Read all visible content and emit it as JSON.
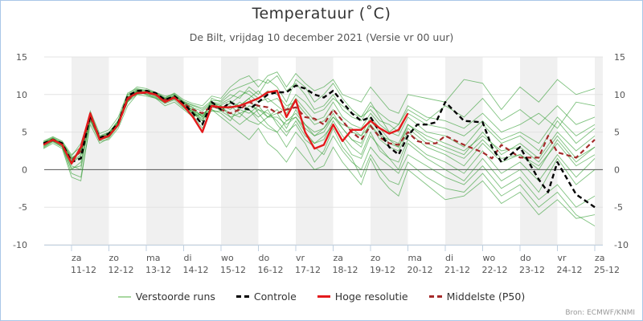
{
  "chart_data": {
    "type": "line",
    "title": "Temperatuur (˚C)",
    "subtitle": "De Bilt, vrijdag 10 december 2021 (Versie vr 00 uur)",
    "ylim": [
      -10,
      15
    ],
    "yticks": [
      15,
      10,
      5,
      0,
      -5,
      -10
    ],
    "x_range_days": [
      -0.75,
      14.2
    ],
    "xticks": [
      {
        "day": 0,
        "dow": "za",
        "date": "11-12"
      },
      {
        "day": 1,
        "dow": "zo",
        "date": "12-12"
      },
      {
        "day": 2,
        "dow": "ma",
        "date": "13-12"
      },
      {
        "day": 3,
        "dow": "di",
        "date": "14-12"
      },
      {
        "day": 4,
        "dow": "wo",
        "date": "15-12"
      },
      {
        "day": 5,
        "dow": "do",
        "date": "16-12"
      },
      {
        "day": 6,
        "dow": "vr",
        "date": "17-12"
      },
      {
        "day": 7,
        "dow": "za",
        "date": "18-12"
      },
      {
        "day": 8,
        "dow": "zo",
        "date": "19-12"
      },
      {
        "day": 9,
        "dow": "ma",
        "date": "20-12"
      },
      {
        "day": 10,
        "dow": "di",
        "date": "21-12"
      },
      {
        "day": 11,
        "dow": "wo",
        "date": "22-12"
      },
      {
        "day": 12,
        "dow": "do",
        "date": "23-12"
      },
      {
        "day": 13,
        "dow": "vr",
        "date": "24-12"
      },
      {
        "day": 14,
        "dow": "za",
        "date": "25-12"
      }
    ],
    "shaded_days": [
      0,
      2,
      4,
      6,
      8,
      10,
      12,
      14
    ],
    "grid": true,
    "legend_position": "bottom",
    "legend": [
      {
        "name": "Verstoorde runs",
        "color": "#a8d8a0",
        "dash": false
      },
      {
        "name": "Controle",
        "color": "#000000",
        "dash": true
      },
      {
        "name": "Hoge resolutie",
        "color": "#e41a1c",
        "dash": false
      },
      {
        "name": "Middelste (P50)",
        "color": "#a52a2a",
        "dash": true
      }
    ],
    "source": "Bron: ECMWF/KNMI",
    "series": [
      {
        "name": "Hoge resolutie",
        "x": [
          -0.75,
          -0.5,
          -0.25,
          0,
          0.25,
          0.5,
          0.75,
          1,
          1.25,
          1.5,
          1.75,
          2,
          2.25,
          2.5,
          2.75,
          3,
          3.25,
          3.5,
          3.75,
          4,
          4.25,
          4.5,
          4.75,
          5,
          5.25,
          5.5,
          5.75,
          6,
          6.25,
          6.5,
          6.75,
          7,
          7.25,
          7.5,
          7.75,
          8,
          8.25,
          8.5,
          8.75,
          9
        ],
        "values": [
          3.3,
          4.0,
          3.3,
          0.8,
          3.0,
          7.5,
          4.0,
          4.5,
          6.0,
          9.5,
          10.2,
          10.3,
          10.0,
          9.0,
          9.6,
          8.5,
          7.0,
          5.0,
          8.5,
          8.3,
          8.3,
          8.5,
          9.0,
          9.5,
          10.3,
          10.5,
          7.0,
          9.3,
          5.0,
          2.8,
          3.3,
          6.0,
          3.8,
          5.3,
          5.3,
          6.5,
          5.5,
          4.8,
          5.3,
          7.5
        ]
      },
      {
        "name": "Controle",
        "x": [
          -0.75,
          -0.5,
          -0.25,
          0,
          0.25,
          0.5,
          0.75,
          1,
          1.25,
          1.5,
          1.75,
          2,
          2.25,
          2.5,
          2.75,
          3,
          3.25,
          3.5,
          3.75,
          4,
          4.25,
          4.5,
          4.75,
          5,
          5.25,
          5.5,
          5.75,
          6,
          6.25,
          6.5,
          6.75,
          7,
          7.25,
          7.5,
          7.75,
          8,
          8.25,
          8.5,
          8.75,
          9,
          9.25,
          9.5,
          9.75,
          10,
          10.5,
          11,
          11.25,
          11.5,
          12,
          12.5,
          12.75,
          13,
          13.5,
          14
        ],
        "values": [
          3.5,
          4.0,
          3.5,
          1.0,
          1.5,
          7.3,
          4.2,
          4.8,
          6.2,
          9.8,
          10.5,
          10.5,
          10.2,
          9.3,
          9.8,
          8.8,
          7.5,
          6.0,
          9.0,
          8.0,
          9.0,
          8.3,
          8.0,
          9.0,
          10.0,
          10.3,
          10.3,
          11.2,
          10.8,
          10.0,
          9.6,
          10.5,
          9.0,
          7.5,
          6.5,
          7.0,
          5.0,
          3.0,
          2.0,
          4.5,
          6.0,
          6.0,
          6.3,
          9.0,
          6.5,
          6.3,
          3.0,
          1.0,
          3.0,
          -1.3,
          -3.0,
          1.0,
          -3.3,
          -5.0
        ]
      },
      {
        "name": "Middelste (P50)",
        "x": [
          -0.75,
          -0.5,
          -0.25,
          0,
          0.25,
          0.5,
          0.75,
          1,
          1.25,
          1.5,
          1.75,
          2,
          2.25,
          2.5,
          2.75,
          3,
          3.25,
          3.5,
          3.75,
          4,
          4.25,
          4.5,
          4.75,
          5,
          5.25,
          5.5,
          5.75,
          6,
          6.25,
          6.5,
          6.75,
          7,
          7.25,
          7.5,
          7.75,
          8,
          8.25,
          8.5,
          8.75,
          9,
          9.25,
          9.5,
          9.75,
          10,
          10.5,
          11,
          11.25,
          11.5,
          12,
          12.5,
          12.75,
          13,
          13.5,
          14
        ],
        "values": [
          3.4,
          3.9,
          3.4,
          1.2,
          2.5,
          7.0,
          4.2,
          4.6,
          6.0,
          9.3,
          10.2,
          10.2,
          10.0,
          9.3,
          9.6,
          8.8,
          8.0,
          7.5,
          8.5,
          8.0,
          7.5,
          8.0,
          9.0,
          8.5,
          8.3,
          7.5,
          8.0,
          8.3,
          7.0,
          6.8,
          6.0,
          8.0,
          6.5,
          5.0,
          4.0,
          5.8,
          4.3,
          3.5,
          3.3,
          5.0,
          3.8,
          3.5,
          3.5,
          4.5,
          3.3,
          2.3,
          1.5,
          3.3,
          1.6,
          1.6,
          4.5,
          2.3,
          1.6,
          4.0
        ]
      }
    ],
    "ensemble_x": [
      -0.75,
      -0.5,
      -0.25,
      0,
      0.25,
      0.5,
      0.75,
      1,
      1.25,
      1.5,
      1.75,
      2,
      2.25,
      2.5,
      2.75,
      3,
      3.25,
      3.5,
      3.75,
      4,
      4.25,
      4.5,
      4.75,
      5,
      5.25,
      5.5,
      5.75,
      6,
      6.25,
      6.5,
      6.75,
      7,
      7.25,
      7.5,
      7.75,
      8,
      8.25,
      8.5,
      8.75,
      9,
      9.5,
      10,
      10.5,
      11,
      11.5,
      12,
      12.5,
      13,
      13.5,
      14
    ],
    "ensemble_members": [
      [
        3.0,
        3.8,
        3.0,
        0.0,
        1.0,
        7.0,
        4.0,
        4.3,
        6.0,
        9.0,
        10.5,
        10.0,
        9.5,
        9.0,
        9.5,
        8.5,
        7.5,
        6.5,
        9.5,
        9.0,
        10.0,
        9.5,
        11.0,
        10.0,
        12.0,
        11.0,
        9.0,
        12.0,
        11.0,
        9.0,
        10.0,
        11.5,
        9.5,
        8.0,
        7.0,
        9.0,
        7.0,
        5.0,
        6.0,
        8.5,
        7.0,
        6.5,
        5.5,
        7.5,
        5.0,
        6.0,
        7.5,
        5.5,
        9.0,
        8.5
      ],
      [
        3.6,
        4.2,
        3.5,
        1.5,
        2.5,
        7.5,
        4.5,
        5.0,
        6.5,
        10.0,
        11.0,
        10.8,
        10.3,
        9.8,
        10.0,
        9.0,
        8.5,
        8.0,
        9.0,
        8.5,
        7.0,
        6.0,
        7.0,
        8.0,
        7.5,
        6.5,
        5.0,
        6.0,
        4.0,
        3.0,
        2.0,
        4.5,
        2.5,
        1.0,
        0.0,
        3.0,
        1.5,
        0.5,
        -0.5,
        2.0,
        0.5,
        -1.0,
        -2.0,
        0.5,
        -2.5,
        -1.0,
        -4.0,
        -2.0,
        -5.0,
        -3.5
      ],
      [
        2.8,
        3.5,
        2.8,
        -1.0,
        -1.5,
        6.5,
        3.8,
        4.0,
        5.5,
        8.5,
        10.0,
        9.8,
        9.5,
        8.5,
        9.0,
        8.0,
        7.0,
        7.5,
        8.0,
        7.5,
        6.5,
        8.5,
        9.5,
        7.5,
        6.0,
        5.0,
        6.5,
        7.0,
        5.5,
        4.5,
        5.0,
        7.0,
        5.5,
        4.0,
        3.0,
        6.0,
        4.0,
        3.0,
        2.5,
        5.0,
        3.0,
        2.0,
        0.5,
        3.5,
        1.0,
        2.0,
        0.0,
        4.0,
        1.0,
        3.0
      ],
      [
        3.8,
        4.4,
        3.8,
        2.0,
        3.0,
        7.8,
        4.8,
        5.3,
        7.0,
        10.2,
        10.8,
        10.5,
        10.2,
        9.5,
        10.2,
        9.3,
        8.8,
        8.5,
        9.8,
        9.5,
        11.0,
        12.0,
        12.5,
        11.0,
        12.5,
        13.0,
        11.0,
        12.8,
        11.5,
        10.5,
        11.0,
        12.0,
        10.0,
        9.5,
        9.0,
        11.0,
        9.5,
        8.0,
        7.5,
        10.0,
        9.5,
        9.0,
        12.0,
        11.5,
        8.0,
        11.0,
        9.0,
        12.0,
        10.0,
        10.8
      ],
      [
        3.2,
        3.9,
        3.2,
        0.5,
        0.0,
        7.2,
        4.2,
        4.5,
        6.2,
        9.5,
        10.3,
        10.3,
        9.8,
        9.2,
        9.7,
        8.3,
        7.8,
        6.0,
        8.5,
        8.0,
        8.5,
        7.5,
        8.0,
        6.5,
        5.5,
        5.0,
        3.0,
        5.0,
        3.5,
        1.0,
        2.5,
        5.5,
        3.0,
        1.5,
        -1.0,
        2.0,
        0.0,
        -1.5,
        -2.0,
        1.0,
        -1.0,
        -2.5,
        -3.0,
        -0.5,
        -3.5,
        -2.0,
        -5.0,
        -3.0,
        -6.0,
        -7.5
      ],
      [
        3.4,
        4.0,
        3.3,
        1.0,
        2.0,
        6.8,
        4.0,
        4.7,
        6.0,
        9.0,
        10.0,
        10.2,
        10.0,
        9.0,
        9.4,
        8.8,
        8.0,
        7.0,
        9.0,
        8.8,
        9.5,
        10.5,
        10.0,
        9.0,
        9.5,
        8.5,
        7.5,
        9.5,
        8.0,
        6.5,
        7.0,
        9.0,
        7.0,
        6.0,
        5.5,
        7.5,
        6.0,
        5.0,
        4.5,
        7.0,
        5.0,
        4.5,
        3.0,
        6.0,
        3.5,
        4.5,
        2.5,
        6.5,
        3.5,
        5.5
      ],
      [
        3.5,
        4.1,
        3.6,
        1.8,
        3.5,
        7.4,
        4.3,
        4.8,
        6.3,
        9.7,
        10.6,
        10.5,
        10.1,
        9.5,
        9.9,
        9.0,
        8.2,
        7.8,
        8.8,
        8.3,
        7.5,
        7.0,
        8.5,
        8.0,
        7.0,
        7.5,
        5.5,
        8.0,
        6.0,
        4.5,
        5.5,
        7.5,
        5.5,
        4.0,
        3.5,
        6.5,
        5.0,
        3.5,
        3.0,
        6.0,
        4.0,
        3.0,
        2.0,
        5.0,
        2.0,
        3.5,
        1.5,
        5.0,
        2.5,
        4.5
      ],
      [
        2.9,
        3.7,
        3.0,
        -0.5,
        -1.0,
        6.0,
        3.5,
        4.2,
        5.8,
        9.2,
        10.4,
        10.0,
        9.6,
        8.8,
        9.3,
        8.2,
        7.2,
        5.5,
        8.0,
        7.0,
        6.0,
        5.0,
        4.0,
        5.5,
        3.5,
        2.5,
        1.0,
        3.0,
        1.5,
        0.0,
        0.5,
        3.0,
        1.0,
        -0.5,
        -2.0,
        1.5,
        -1.0,
        -2.5,
        -3.5,
        0.0,
        -2.0,
        -4.0,
        -3.5,
        -1.5,
        -4.5,
        -3.0,
        -6.0,
        -4.0,
        -6.5,
        -6.0
      ],
      [
        3.3,
        4.0,
        3.4,
        1.2,
        2.8,
        7.6,
        4.4,
        4.9,
        6.6,
        9.9,
        10.7,
        10.6,
        10.3,
        9.6,
        10.1,
        9.1,
        8.6,
        8.2,
        9.2,
        9.2,
        10.5,
        11.0,
        11.5,
        12.0,
        11.5,
        12.5,
        10.5,
        11.5,
        10.0,
        8.0,
        8.5,
        10.0,
        8.0,
        7.0,
        6.5,
        8.5,
        7.5,
        6.5,
        6.0,
        8.0,
        6.5,
        8.5,
        7.0,
        9.5,
        6.5,
        8.0,
        6.0,
        8.5,
        6.0,
        7.0
      ],
      [
        3.7,
        4.3,
        3.7,
        1.6,
        2.2,
        7.1,
        4.1,
        4.6,
        6.1,
        9.4,
        10.1,
        10.4,
        10.0,
        9.4,
        9.8,
        8.6,
        7.6,
        6.8,
        8.2,
        8.5,
        8.0,
        9.0,
        8.0,
        7.0,
        8.0,
        6.0,
        4.5,
        6.5,
        4.5,
        3.5,
        4.0,
        6.5,
        4.5,
        3.0,
        2.0,
        5.0,
        2.5,
        1.5,
        1.0,
        4.0,
        2.0,
        1.0,
        -0.5,
        2.5,
        -0.5,
        1.0,
        -1.5,
        2.0,
        -1.0,
        1.5
      ],
      [
        3.1,
        3.8,
        3.1,
        0.2,
        0.5,
        6.6,
        3.9,
        4.4,
        5.9,
        9.1,
        10.2,
        10.1,
        9.7,
        8.9,
        9.5,
        8.4,
        7.4,
        7.2,
        7.8,
        7.8,
        9.0,
        8.5,
        9.5,
        10.5,
        9.0,
        9.5,
        8.0,
        10.0,
        9.0,
        7.5,
        8.0,
        9.5,
        8.5,
        7.5,
        7.0,
        8.0,
        6.5,
        6.0,
        5.0,
        7.5,
        6.0,
        5.5,
        4.5,
        6.5,
        4.0,
        5.0,
        3.5,
        7.0,
        4.5,
        6.0
      ],
      [
        3.6,
        4.1,
        3.5,
        1.4,
        2.6,
        7.3,
        4.3,
        4.8,
        6.4,
        9.6,
        10.5,
        10.4,
        10.2,
        9.4,
        9.8,
        8.9,
        8.3,
        7.0,
        8.7,
        8.6,
        9.2,
        8.0,
        7.5,
        8.5,
        7.0,
        7.0,
        6.0,
        7.0,
        5.0,
        3.5,
        4.5,
        6.0,
        4.0,
        2.0,
        1.5,
        4.5,
        3.0,
        1.5,
        0.0,
        3.5,
        1.5,
        0.0,
        -1.5,
        1.5,
        -1.5,
        0.0,
        -3.0,
        1.5,
        -2.0,
        0.0
      ],
      [
        3.4,
        3.9,
        3.3,
        0.9,
        1.8,
        7.0,
        4.1,
        4.6,
        6.1,
        9.4,
        10.3,
        10.2,
        9.9,
        9.1,
        9.6,
        8.7,
        7.9,
        6.5,
        8.4,
        8.2,
        8.8,
        9.8,
        10.5,
        9.5,
        10.5,
        10.0,
        8.5,
        9.0,
        7.5,
        6.0,
        6.5,
        8.0,
        6.5,
        5.0,
        4.5,
        7.0,
        5.5,
        4.0,
        3.5,
        6.0,
        4.5,
        3.5,
        2.5,
        4.5,
        2.5,
        3.0,
        1.0,
        4.5,
        1.5,
        3.0
      ],
      [
        3.5,
        4.2,
        3.4,
        1.1,
        2.4,
        7.2,
        4.2,
        4.7,
        6.3,
        9.6,
        10.4,
        10.3,
        10.0,
        9.3,
        9.7,
        8.5,
        7.7,
        7.3,
        8.6,
        7.8,
        7.0,
        7.5,
        6.5,
        6.0,
        7.0,
        8.0,
        6.5,
        7.5,
        6.0,
        5.0,
        5.5,
        7.0,
        6.0,
        5.5,
        4.5,
        6.0,
        4.5,
        4.0,
        3.0,
        5.5,
        3.5,
        2.5,
        1.5,
        4.0,
        1.5,
        2.0,
        0.5,
        3.5,
        0.5,
        2.0
      ]
    ]
  },
  "footer": {
    "source": "Bron: ECMWF/KNMI"
  }
}
